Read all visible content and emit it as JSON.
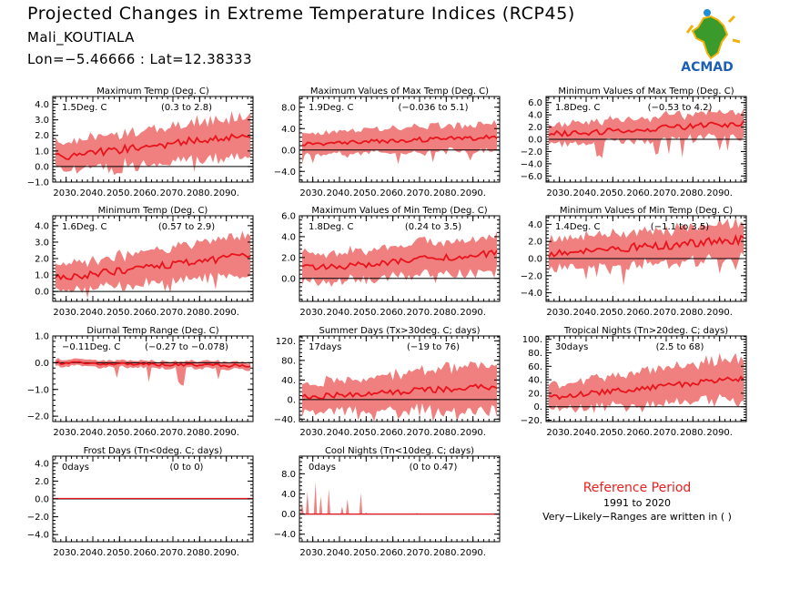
{
  "header": {
    "title": "Projected Changes in Extreme Temperature Indices (RCP45)",
    "station": "Mali_KOUTIALA",
    "coords": "Lon=−5.46666 : Lat=12.38333"
  },
  "logo": {
    "text": "ACMAD",
    "icon": "africa-sun-logo-icon"
  },
  "reference": {
    "title": "Reference Period",
    "years": "1991 to 2020",
    "note": "Very−Likely−Ranges are written in ( )"
  },
  "colors": {
    "band": "#f08080",
    "line": "#e8141c",
    "zero": "#000000"
  },
  "chart_data": [
    {
      "type": "area",
      "title": "Maximum Temp (Deg. C)",
      "change": "1.5Deg. C",
      "range": "(0.3 to 2.8)",
      "ylim": [
        -1.0,
        4.5
      ],
      "yticks": [
        "4.0",
        "3.0",
        "2.0",
        "1.0",
        "0.0",
        "−1.0"
      ],
      "ytickvals": [
        4,
        3,
        2,
        1,
        0,
        -1
      ],
      "x": [
        2025,
        2100
      ],
      "xticks": [
        "2030.",
        "2040.",
        "2050.",
        "2060.",
        "2070.",
        "2080.",
        "2090."
      ],
      "trend": [
        0.6,
        2.1
      ],
      "spread": [
        0.9,
        1.3
      ],
      "noise": 0.25,
      "dips": 0.3
    },
    {
      "type": "area",
      "title": "Maximum Values of Max Temp (Deg. C)",
      "change": "1.9Deg. C",
      "range": "(−0.036 to 5.1)",
      "ylim": [
        -6.0,
        10.0
      ],
      "yticks": [
        "8.0",
        "4.0",
        "0.0",
        "−4.0"
      ],
      "ytickvals": [
        8,
        4,
        0,
        -4
      ],
      "x": [
        2025,
        2100
      ],
      "xticks": [
        "2030.",
        "2040.",
        "2050.",
        "2060.",
        "2070.",
        "2080.",
        "2090."
      ],
      "trend": [
        1.2,
        2.4
      ],
      "spread": [
        2.0,
        2.6
      ],
      "noise": 0.45,
      "dips": 1.5
    },
    {
      "type": "area",
      "title": "Minimum Values of Max Temp (Deg. C)",
      "change": "1.8Deg. C",
      "range": "(−0.53 to 4.2)",
      "ylim": [
        -7.0,
        7.0
      ],
      "yticks": [
        "6.0",
        "4.0",
        "2.0",
        "0.0",
        "−2.0",
        "−4.0",
        "−6.0"
      ],
      "ytickvals": [
        6,
        4,
        2,
        0,
        -2,
        -4,
        -6
      ],
      "x": [
        2025,
        2100
      ],
      "xticks": [
        "2030.",
        "2040.",
        "2050.",
        "2060.",
        "2070.",
        "2080.",
        "2090."
      ],
      "trend": [
        0.8,
        2.6
      ],
      "spread": [
        1.6,
        2.2
      ],
      "noise": 0.5,
      "dips": 1.8
    },
    {
      "type": "area",
      "title": "Minimum Temp (Deg. C)",
      "change": "1.6Deg. C",
      "range": "(0.57 to 2.9)",
      "ylim": [
        -0.6,
        4.6
      ],
      "yticks": [
        "4.0",
        "3.0",
        "2.0",
        "1.0",
        "0.0"
      ],
      "ytickvals": [
        4,
        3,
        2,
        1,
        0
      ],
      "x": [
        2025,
        2100
      ],
      "xticks": [
        "2030.",
        "2040.",
        "2050.",
        "2060.",
        "2070.",
        "2080.",
        "2090."
      ],
      "trend": [
        0.8,
        2.2
      ],
      "spread": [
        0.8,
        1.2
      ],
      "noise": 0.22,
      "dips": 0.25
    },
    {
      "type": "area",
      "title": "Maximum Values of Min Temp (Deg. C)",
      "change": "1.8Deg. C",
      "range": "(0.24 to 3.5)",
      "ylim": [
        -2.2,
        6.0
      ],
      "yticks": [
        "6.0",
        "4.0",
        "2.0",
        "0.0"
      ],
      "ytickvals": [
        6,
        4,
        2,
        0
      ],
      "x": [
        2025,
        2100
      ],
      "xticks": [
        "2030.",
        "2040.",
        "2050.",
        "2060.",
        "2070.",
        "2080.",
        "2090."
      ],
      "trend": [
        0.9,
        2.4
      ],
      "spread": [
        1.3,
        1.7
      ],
      "noise": 0.35,
      "dips": 0.4
    },
    {
      "type": "area",
      "title": "Minimum Values of Min Temp (Deg. C)",
      "change": "1.4Deg. C",
      "range": "(−1.1 to 3.5)",
      "ylim": [
        -5.0,
        5.0
      ],
      "yticks": [
        "4.0",
        "2.0",
        "0.0",
        "−2.0",
        "−4.0"
      ],
      "ytickvals": [
        4,
        2,
        0,
        -2,
        -4
      ],
      "x": [
        2025,
        2100
      ],
      "xticks": [
        "2030.",
        "2040.",
        "2050.",
        "2060.",
        "2070.",
        "2080.",
        "2090."
      ],
      "trend": [
        0.6,
        2.2
      ],
      "spread": [
        1.7,
        2.1
      ],
      "noise": 0.5,
      "dips": 1.6
    },
    {
      "type": "area",
      "title": "Diurnal Temp Range (Deg. C)",
      "change": "−0.11Deg. C",
      "range": "(−0.27 to −0.078)",
      "ylim": [
        -2.2,
        1.0
      ],
      "yticks": [
        "1.0",
        "0.0",
        "−1.0",
        "−2.0"
      ],
      "ytickvals": [
        1,
        0,
        -1,
        -2
      ],
      "x": [
        2025,
        2100
      ],
      "xticks": [
        "2030.",
        "2040.",
        "2050.",
        "2060.",
        "2070.",
        "2080.",
        "2090."
      ],
      "trend": [
        0.0,
        -0.12
      ],
      "spread": [
        0.12,
        0.14
      ],
      "noise": 0.05,
      "dips": 0.6
    },
    {
      "type": "area",
      "title": "Summer Days (Tx>30deg. C; days)",
      "change": "17days",
      "range": "(−19 to 76)",
      "ylim": [
        -45,
        130
      ],
      "yticks": [
        "120.",
        "80.",
        "40.",
        "0.",
        "−40."
      ],
      "ytickvals": [
        120,
        80,
        40,
        0,
        -40
      ],
      "x": [
        2025,
        2100
      ],
      "xticks": [
        "2030.",
        "2040.",
        "2050.",
        "2060.",
        "2070.",
        "2080.",
        "2090."
      ],
      "trend": [
        5,
        27
      ],
      "spread": [
        28,
        48
      ],
      "noise": 6,
      "dips": 12
    },
    {
      "type": "area",
      "title": "Tropical Nights (Tn>20deg. C; days)",
      "change": "30days",
      "range": "(2.5 to 68)",
      "ylim": [
        -22,
        105
      ],
      "yticks": [
        "100.",
        "80.",
        "60.",
        "40.",
        "20.",
        "0.",
        "−20."
      ],
      "ytickvals": [
        100,
        80,
        60,
        40,
        20,
        0,
        -20
      ],
      "x": [
        2025,
        2100
      ],
      "xticks": [
        "2030.",
        "2040.",
        "2050.",
        "2060.",
        "2070.",
        "2080.",
        "2090."
      ],
      "trend": [
        14,
        42
      ],
      "spread": [
        18,
        32
      ],
      "noise": 4,
      "dips": 8
    },
    {
      "type": "area",
      "title": "Frost Days (Tn<0deg. C; days)",
      "change": "0days",
      "range": "(0 to 0)",
      "ylim": [
        -4.8,
        4.8
      ],
      "yticks": [
        "4.0",
        "2.0",
        "0.0",
        "−2.0",
        "−4.0"
      ],
      "ytickvals": [
        4,
        2,
        0,
        -2,
        -4
      ],
      "x": [
        2025,
        2100
      ],
      "xticks": [
        "2030.",
        "2040.",
        "2050.",
        "2060.",
        "2070.",
        "2080.",
        "2090."
      ],
      "flat": true
    },
    {
      "type": "area",
      "title": "Cool Nights (Tn<10deg. C; days)",
      "change": "0days",
      "range": "(0 to 0.47)",
      "ylim": [
        -5.5,
        11.5
      ],
      "yticks": [
        "8.0",
        "4.0",
        "0.0",
        "−4.0"
      ],
      "ytickvals": [
        8,
        4,
        0,
        -4
      ],
      "x": [
        2025,
        2100
      ],
      "xticks": [
        "2030.",
        "2040.",
        "2050.",
        "2060.",
        "2070.",
        "2080.",
        "2090."
      ],
      "spikes": [
        [
          2026,
          2.4
        ],
        [
          2028,
          4.5
        ],
        [
          2031,
          6.4
        ],
        [
          2033,
          3.6
        ],
        [
          2036,
          5.0
        ],
        [
          2041,
          1.5
        ],
        [
          2043,
          3.0
        ],
        [
          2048,
          4.2
        ],
        [
          2050,
          0.3
        ],
        [
          2069,
          0.25
        ]
      ]
    }
  ]
}
